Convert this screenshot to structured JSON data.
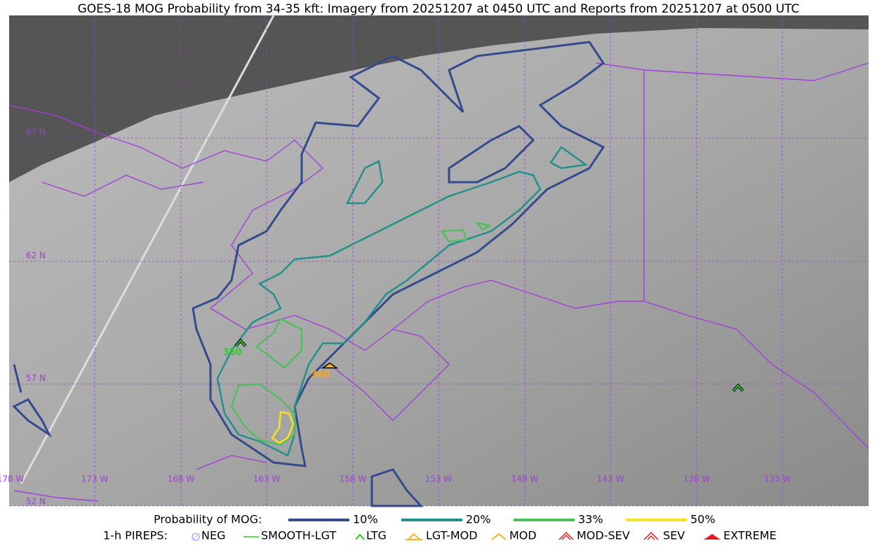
{
  "title": "GOES-18 MOG Probability from 34-35 kft: Imagery from 20251207 at 0450 UTC and Reports from 20251207 at 0500 UTC",
  "latitude_labels": [
    "67 N",
    "62 N",
    "57 N",
    "52 N"
  ],
  "longitude_labels": [
    "178 W",
    "173 W",
    "168 W",
    "163 W",
    "158 W",
    "153 W",
    "148 W",
    "143 W",
    "138 W",
    "133 W"
  ],
  "report_labels": [
    "350",
    "360"
  ],
  "probability_legend": {
    "title": "Probability of MOG:",
    "items": [
      "10%",
      "20%",
      "33%",
      "50%"
    ]
  },
  "pirep_legend": {
    "title": "1-h PIREPS:",
    "items": [
      "NEG",
      "SMOOTH-LGT",
      "LTG",
      "LGT-MOD",
      "MOD",
      "MOD-SEV",
      "SEV",
      "EXTREME"
    ]
  }
}
